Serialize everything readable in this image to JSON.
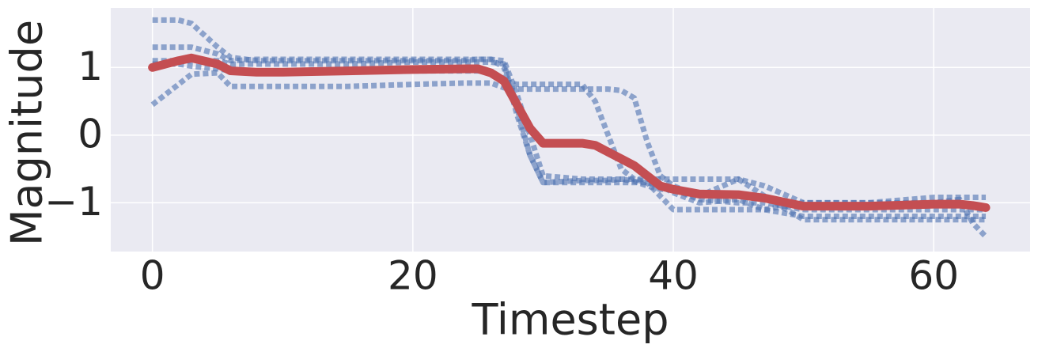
{
  "chart_data": {
    "type": "line",
    "xlabel": "Timestep",
    "ylabel": "Magnitude",
    "x": [
      0,
      2,
      3,
      5,
      6,
      8,
      10,
      15,
      20,
      24,
      25,
      26,
      27,
      28,
      29,
      30,
      33,
      34,
      35,
      36,
      37,
      38,
      39,
      40,
      42,
      45,
      47,
      50,
      55,
      60,
      62,
      63,
      64
    ],
    "series": [
      {
        "color": "#4c72b0",
        "linestyle": "dotted",
        "alpha": 0.6,
        "values": [
          1.7,
          1.7,
          1.65,
          1.3,
          1.15,
          1.1,
          1.1,
          1.1,
          1.1,
          1.1,
          1.12,
          1.12,
          1.0,
          0.3,
          -0.3,
          -0.7,
          -0.67,
          -0.67,
          -0.67,
          -0.65,
          -0.65,
          -0.7,
          -0.9,
          -1.1,
          -1.1,
          -1.1,
          -1.1,
          -1.0,
          -1.0,
          -1.0,
          -0.95,
          -1.3,
          -1.5
        ]
      },
      {
        "color": "#4c72b0",
        "linestyle": "dotted",
        "alpha": 0.6,
        "values": [
          1.3,
          1.3,
          1.3,
          1.2,
          1.1,
          1.12,
          1.12,
          1.12,
          1.12,
          1.12,
          1.12,
          1.12,
          1.1,
          0.6,
          0.0,
          -0.6,
          -0.65,
          -0.65,
          -0.65,
          -0.65,
          -0.68,
          -0.75,
          -0.8,
          -0.8,
          -0.95,
          -1.0,
          -1.0,
          -1.1,
          -1.1,
          -1.1,
          -1.1,
          -1.1,
          -1.1
        ]
      },
      {
        "color": "#4c72b0",
        "linestyle": "dotted",
        "alpha": 0.6,
        "values": [
          1.05,
          1.05,
          1.02,
          0.98,
          0.95,
          0.95,
          0.95,
          0.95,
          0.95,
          0.95,
          0.95,
          0.95,
          0.8,
          0.75,
          0.75,
          0.75,
          0.75,
          0.5,
          0.0,
          -0.5,
          -0.65,
          -0.65,
          -0.65,
          -0.65,
          -0.65,
          -0.65,
          -0.75,
          -1.0,
          -1.0,
          -0.92,
          -0.92,
          -0.92,
          -0.92
        ]
      },
      {
        "color": "#4c72b0",
        "linestyle": "dotted",
        "alpha": 0.6,
        "values": [
          0.45,
          0.75,
          0.9,
          0.92,
          0.72,
          0.72,
          0.72,
          0.72,
          0.75,
          0.77,
          0.77,
          0.77,
          0.7,
          0.68,
          0.68,
          0.68,
          0.68,
          0.68,
          0.68,
          0.66,
          0.55,
          -0.1,
          -0.6,
          -0.75,
          -0.9,
          -0.65,
          -0.9,
          -1.25,
          -1.25,
          -1.25,
          -1.25,
          -1.25,
          -1.25
        ]
      },
      {
        "color": "#4c72b0",
        "linestyle": "dotted",
        "alpha": 0.6,
        "values": [
          1.1,
          1.1,
          1.1,
          1.1,
          1.05,
          1.05,
          1.05,
          1.05,
          1.08,
          1.08,
          1.08,
          1.08,
          1.05,
          0.4,
          -0.3,
          -0.7,
          -0.7,
          -0.7,
          -0.7,
          -0.7,
          -0.7,
          -0.7,
          -0.75,
          -0.85,
          -1.0,
          -0.95,
          -1.1,
          -1.2,
          -1.2,
          -1.2,
          -1.2,
          -1.2,
          -1.2
        ]
      },
      {
        "color": "#c44e52",
        "linestyle": "solid",
        "alpha": 1,
        "values": [
          1.0,
          1.1,
          1.14,
          1.05,
          0.95,
          0.93,
          0.93,
          0.95,
          0.97,
          0.98,
          0.98,
          0.92,
          0.8,
          0.45,
          0.1,
          -0.12,
          -0.12,
          -0.15,
          -0.25,
          -0.35,
          -0.45,
          -0.6,
          -0.75,
          -0.8,
          -0.87,
          -0.88,
          -0.93,
          -1.05,
          -1.05,
          -1.02,
          -1.02,
          -1.04,
          -1.07
        ]
      }
    ],
    "xlim": [
      -3.2,
      67.4
    ],
    "xticks": [
      0,
      20,
      40,
      60
    ],
    "ylim": [
      -1.72,
      1.88
    ],
    "yticks": [
      {
        "value": -1,
        "label": "−1"
      },
      0,
      1
    ],
    "grid": true
  }
}
